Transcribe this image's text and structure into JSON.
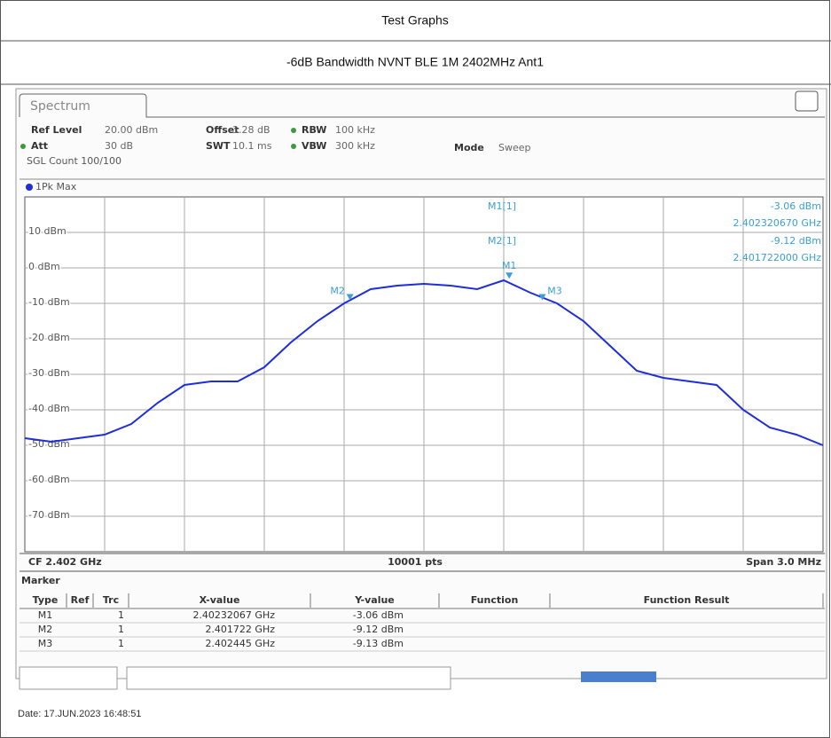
{
  "header": {
    "title": "Test Graphs",
    "subtitle": "-6dB Bandwidth NVNT BLE 1M 2402MHz Ant1"
  },
  "screen": {
    "tab": "Spectrum",
    "settings": [
      {
        "label": "Ref Level",
        "value": "20.00 dBm"
      },
      {
        "label": "Offset",
        "value": "1.28 dB"
      },
      {
        "label": "RBW",
        "value": "100 kHz"
      },
      {
        "label": "Att",
        "value": "30 dB"
      },
      {
        "label": "SWT",
        "value": "10.1 ms"
      },
      {
        "label": "VBW",
        "value": "300 kHz"
      },
      {
        "label": "Mode",
        "value": "Sweep"
      }
    ],
    "count": "SGL Count 100/100",
    "footer": {
      "cf": "CF 2.402 GHz",
      "pts": "10001 pts",
      "span": "Span 3.0 MHz"
    },
    "readout": [
      {
        "name": "M1[1]",
        "level": "-3.06 dBm",
        "freq": "2.402320670 GHz"
      },
      {
        "name": "M2[1]",
        "level": "-9.12 dBm",
        "freq": "2.401722000 GHz"
      }
    ],
    "marker_table": {
      "title": "Marker",
      "columns": [
        "Type",
        "Ref",
        "Trc",
        "X-value",
        "Y-value",
        "Function",
        "Function Result"
      ],
      "rows": [
        {
          "type": "M1",
          "trc": "1",
          "x": "2.40232067 GHz",
          "y": "-3.06 dBm"
        },
        {
          "type": "M2",
          "trc": "1",
          "x": "2.401722 GHz",
          "y": "-9.12 dBm"
        },
        {
          "type": "M3",
          "trc": "1",
          "x": "2.402445 GHz",
          "y": "-9.13 dBm"
        }
      ]
    },
    "date": "Date: 17.JUN.2023  16:48:51"
  },
  "chart_data": {
    "type": "line",
    "x": [
      2.4005,
      2.4006,
      2.4007,
      2.4008,
      2.4009,
      2.401,
      2.4011,
      2.4012,
      2.4013,
      2.4014,
      2.4015,
      2.4016,
      2.4017,
      2.4018,
      2.4019,
      2.402,
      2.4021,
      2.4022,
      2.4023,
      2.4024,
      2.4025,
      2.4026,
      2.4027,
      2.4028,
      2.4029,
      2.403,
      2.4031,
      2.4032,
      2.4033,
      2.4034,
      2.4035
    ],
    "series": [
      {
        "name": "1Pk Max",
        "color": "#1e2ed8",
        "values": [
          -48,
          -49,
          -48,
          -47,
          -44,
          -38,
          -33,
          -32,
          -32,
          -28,
          -21,
          -15,
          -10,
          -6,
          -5,
          -4.5,
          -5,
          -6,
          -3.5,
          -7,
          -10,
          -15,
          -22,
          -29,
          -31,
          -32,
          -33,
          -40,
          -45,
          -47,
          -50
        ]
      }
    ],
    "xlim": [
      2.4005,
      2.4035
    ],
    "ylim": [
      -80,
      20
    ],
    "yticks": [
      {
        "value": 10,
        "label": "10 dBm"
      },
      {
        "value": 0,
        "label": "0 dBm"
      },
      {
        "value": -10,
        "label": "-10 dBm"
      },
      {
        "value": -20,
        "label": "-20 dBm"
      },
      {
        "value": -30,
        "label": "-30 dBm"
      },
      {
        "value": -40,
        "label": "-40 dBm"
      },
      {
        "value": -50,
        "label": "-50 dBm"
      },
      {
        "value": -60,
        "label": "-60 dBm"
      },
      {
        "value": -70,
        "label": "-70 dBm"
      }
    ],
    "grid": true,
    "markers": [
      {
        "label": "M1",
        "x": 2.40232067,
        "y": -3.06
      },
      {
        "label": "M2",
        "x": 2.401722,
        "y": -9.12
      },
      {
        "label": "M3",
        "x": 2.402445,
        "y": -9.13
      }
    ],
    "marker_color": "#3a9fd6"
  }
}
